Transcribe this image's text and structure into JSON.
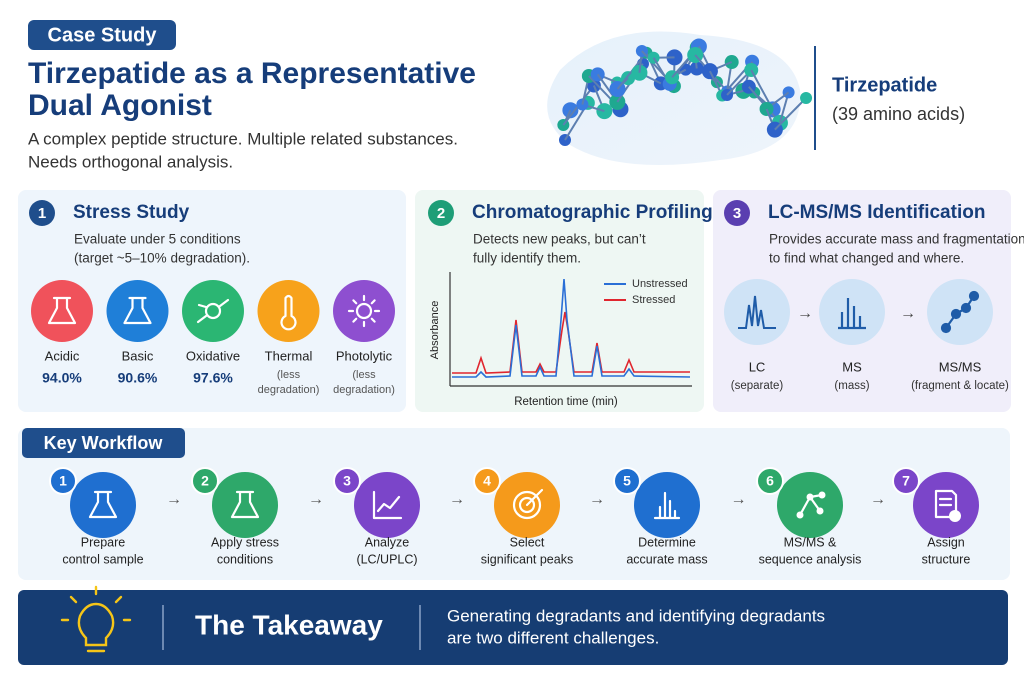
{
  "header": {
    "badge": "Case Study",
    "title_lines": [
      "Tirzepatide as a Representative",
      "Dual Agonist"
    ],
    "description_lines": [
      "A complex peptide structure. Multiple related substances.",
      "Needs orthogonal analysis."
    ],
    "molecule_name": "Tirzepatide",
    "molecule_detail": "(39 amino acids)"
  },
  "panels": {
    "stress": {
      "number": "1",
      "title": "Stress Study",
      "description_lines": [
        "Evaluate under 5 conditions",
        "(target ~5–10% degradation)."
      ],
      "conditions": [
        {
          "label": "Acidic",
          "value": "94.0%"
        },
        {
          "label": "Basic",
          "value": "90.6%"
        },
        {
          "label": "Oxidative",
          "value": "97.6%"
        },
        {
          "label": "Thermal",
          "note_lines": [
            "(less",
            "degradation)"
          ]
        },
        {
          "label": "Photolytic",
          "note_lines": [
            "(less",
            "degradation)"
          ]
        }
      ]
    },
    "chromatography": {
      "number": "2",
      "title": "Chromatographic Profiling",
      "description_lines": [
        "Detects new peaks, but can’t",
        "fully identify them."
      ],
      "y_axis": "Absorbance",
      "x_axis": "Retention time (min)",
      "legend": [
        "Unstressed",
        "Stressed"
      ]
    },
    "lcms": {
      "number": "3",
      "title": "LC-MS/MS Identification",
      "description_lines": [
        "Provides accurate mass and fragmentation",
        "to find what changed and where."
      ],
      "steps": [
        {
          "label": "LC",
          "note": "(separate)"
        },
        {
          "label": "MS",
          "note": "(mass)"
        },
        {
          "label": "MS/MS",
          "note": "(fragment & locate)"
        }
      ]
    }
  },
  "workflow": {
    "title": "Key Workflow",
    "steps": [
      {
        "number": "1",
        "label_lines": [
          "Prepare",
          "control sample"
        ]
      },
      {
        "number": "2",
        "label_lines": [
          "Apply stress",
          "conditions"
        ]
      },
      {
        "number": "3",
        "label_lines": [
          "Analyze",
          "(LC/UPLC)"
        ]
      },
      {
        "number": "4",
        "label_lines": [
          "Select",
          "significant peaks"
        ]
      },
      {
        "number": "5",
        "label_lines": [
          "Determine",
          "accurate mass"
        ]
      },
      {
        "number": "6",
        "label_lines": [
          "MS/MS &",
          "sequence analysis"
        ]
      },
      {
        "number": "7",
        "label_lines": [
          "Assign",
          "structure"
        ]
      }
    ]
  },
  "takeaway": {
    "title": "The Takeaway",
    "text_lines": [
      "Generating degradants and identifying degradants",
      "are two different challenges."
    ]
  }
}
